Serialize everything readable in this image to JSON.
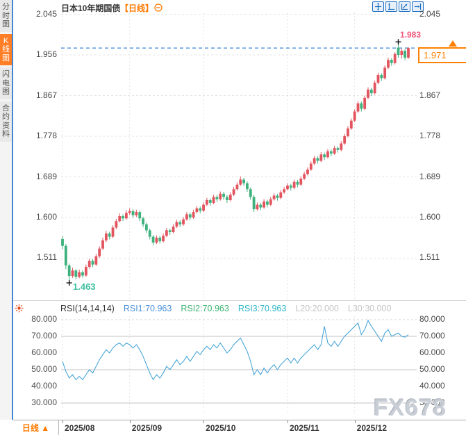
{
  "sidebar": {
    "tabs": [
      {
        "label": "分时图",
        "active": false
      },
      {
        "label": "K线图",
        "active": true
      },
      {
        "label": "闪电图",
        "active": false
      },
      {
        "label": "合约资料",
        "active": false
      }
    ]
  },
  "header": {
    "title": "日本10年期国债",
    "timeframe_tag": "【日线】",
    "toolbar_icons": [
      "pan-tool",
      "fit-y-axis",
      "fit-chart",
      "jump-to-latest"
    ]
  },
  "price_pane": {
    "axis_ticks": [
      "2.045",
      "1.956",
      "1.867",
      "1.778",
      "1.689",
      "1.600",
      "1.511"
    ],
    "high_label": "1.983",
    "low_label": "1.463",
    "last_price_label": "1.971"
  },
  "rsi_pane": {
    "header": {
      "name": "RSI(14,14,14)",
      "rsi1": "RSI1:70.963",
      "rsi2": "RSI2:70.963",
      "rsi3": "RSI3:70.963",
      "l20": "L20:20.000",
      "l30": "L30:30.000"
    },
    "axis_ticks": [
      "80.000",
      "70.000",
      "60.000",
      "50.000",
      "40.000",
      "30.000"
    ]
  },
  "bottom_bar": {
    "timeframe": "日线",
    "dropdown_arrow": "▲"
  },
  "watermark": "FX678",
  "colors": {
    "up": "#e2545e",
    "down": "#3eb17c",
    "rsi_line": "#4aa6d8",
    "rsi1_label": "#4a90d9",
    "rsi2_label": "#3cb371",
    "rsi3_label": "#2ab5c8",
    "l_label": "#c4c4c4",
    "accent_orange": "#ff7a00",
    "last_price_line": "#3a86d8",
    "high_label": "#f0557a",
    "low_label": "#3fc0a0",
    "toolbar_blue": "#1d6ec0",
    "grid": "#e4e4e4"
  },
  "chart_data": {
    "type": "candlestick+line",
    "title": "日本10年期国债 日线 (Japan 10Y Government Bond, daily)",
    "price_axis": [
      2.045,
      1.956,
      1.867,
      1.778,
      1.689,
      1.6,
      1.511
    ],
    "rsi_axis": [
      80,
      70,
      60,
      50,
      40,
      30
    ],
    "rsi_solid_lines": [
      70,
      50,
      30
    ],
    "rsi_dashed_lines": [
      80
    ],
    "last_price": 1.971,
    "high": 1.983,
    "high_index": 100,
    "low": 1.463,
    "low_index": 2,
    "months": [
      {
        "label": "2025/08",
        "index": 0
      },
      {
        "label": "2025/09",
        "index": 20
      },
      {
        "label": "2025/10",
        "index": 42
      },
      {
        "label": "2025/11",
        "index": 67
      },
      {
        "label": "2025/12",
        "index": 87
      }
    ],
    "candles": [
      [
        1.553,
        1.559,
        1.531,
        1.538
      ],
      [
        1.538,
        1.542,
        1.487,
        1.495
      ],
      [
        1.495,
        1.499,
        1.463,
        1.472
      ],
      [
        1.472,
        1.49,
        1.468,
        1.484
      ],
      [
        1.484,
        1.487,
        1.465,
        1.47
      ],
      [
        1.47,
        1.486,
        1.467,
        1.48
      ],
      [
        1.48,
        1.484,
        1.468,
        1.473
      ],
      [
        1.473,
        1.497,
        1.47,
        1.492
      ],
      [
        1.492,
        1.51,
        1.488,
        1.505
      ],
      [
        1.505,
        1.509,
        1.491,
        1.497
      ],
      [
        1.497,
        1.52,
        1.494,
        1.515
      ],
      [
        1.515,
        1.537,
        1.512,
        1.532
      ],
      [
        1.532,
        1.556,
        1.529,
        1.55
      ],
      [
        1.55,
        1.571,
        1.546,
        1.565
      ],
      [
        1.565,
        1.569,
        1.552,
        1.558
      ],
      [
        1.558,
        1.583,
        1.555,
        1.578
      ],
      [
        1.578,
        1.597,
        1.574,
        1.592
      ],
      [
        1.592,
        1.609,
        1.589,
        1.603
      ],
      [
        1.603,
        1.607,
        1.592,
        1.598
      ],
      [
        1.598,
        1.616,
        1.595,
        1.61
      ],
      [
        1.61,
        1.62,
        1.606,
        1.614
      ],
      [
        1.614,
        1.618,
        1.599,
        1.605
      ],
      [
        1.605,
        1.617,
        1.601,
        1.612
      ],
      [
        1.612,
        1.615,
        1.592,
        1.598
      ],
      [
        1.598,
        1.602,
        1.579,
        1.585
      ],
      [
        1.585,
        1.589,
        1.566,
        1.572
      ],
      [
        1.572,
        1.576,
        1.552,
        1.558
      ],
      [
        1.558,
        1.562,
        1.539,
        1.545
      ],
      [
        1.545,
        1.561,
        1.542,
        1.556
      ],
      [
        1.556,
        1.56,
        1.543,
        1.548
      ],
      [
        1.548,
        1.565,
        1.545,
        1.56
      ],
      [
        1.56,
        1.577,
        1.557,
        1.572
      ],
      [
        1.572,
        1.576,
        1.562,
        1.568
      ],
      [
        1.568,
        1.585,
        1.565,
        1.58
      ],
      [
        1.58,
        1.595,
        1.577,
        1.59
      ],
      [
        1.59,
        1.594,
        1.579,
        1.585
      ],
      [
        1.585,
        1.601,
        1.582,
        1.596
      ],
      [
        1.596,
        1.612,
        1.593,
        1.607
      ],
      [
        1.607,
        1.611,
        1.594,
        1.6
      ],
      [
        1.6,
        1.617,
        1.597,
        1.612
      ],
      [
        1.612,
        1.625,
        1.609,
        1.62
      ],
      [
        1.62,
        1.624,
        1.609,
        1.615
      ],
      [
        1.615,
        1.633,
        1.612,
        1.628
      ],
      [
        1.628,
        1.643,
        1.625,
        1.638
      ],
      [
        1.638,
        1.642,
        1.626,
        1.632
      ],
      [
        1.632,
        1.65,
        1.629,
        1.645
      ],
      [
        1.645,
        1.649,
        1.634,
        1.64
      ],
      [
        1.64,
        1.657,
        1.637,
        1.652
      ],
      [
        1.652,
        1.656,
        1.639,
        1.645
      ],
      [
        1.645,
        1.649,
        1.632,
        1.638
      ],
      [
        1.638,
        1.655,
        1.635,
        1.65
      ],
      [
        1.65,
        1.667,
        1.647,
        1.662
      ],
      [
        1.662,
        1.677,
        1.659,
        1.672
      ],
      [
        1.672,
        1.69,
        1.669,
        1.683
      ],
      [
        1.683,
        1.687,
        1.669,
        1.675
      ],
      [
        1.675,
        1.679,
        1.656,
        1.662
      ],
      [
        1.662,
        1.666,
        1.639,
        1.645
      ],
      [
        1.645,
        1.649,
        1.612,
        1.618
      ],
      [
        1.618,
        1.633,
        1.615,
        1.628
      ],
      [
        1.628,
        1.632,
        1.616,
        1.622
      ],
      [
        1.622,
        1.64,
        1.619,
        1.635
      ],
      [
        1.635,
        1.639,
        1.622,
        1.628
      ],
      [
        1.628,
        1.645,
        1.625,
        1.64
      ],
      [
        1.64,
        1.653,
        1.637,
        1.648
      ],
      [
        1.648,
        1.652,
        1.637,
        1.643
      ],
      [
        1.643,
        1.66,
        1.64,
        1.655
      ],
      [
        1.655,
        1.667,
        1.652,
        1.662
      ],
      [
        1.662,
        1.675,
        1.659,
        1.67
      ],
      [
        1.67,
        1.674,
        1.659,
        1.665
      ],
      [
        1.665,
        1.683,
        1.662,
        1.678
      ],
      [
        1.678,
        1.682,
        1.666,
        1.672
      ],
      [
        1.672,
        1.69,
        1.669,
        1.685
      ],
      [
        1.685,
        1.7,
        1.682,
        1.695
      ],
      [
        1.695,
        1.71,
        1.692,
        1.705
      ],
      [
        1.705,
        1.723,
        1.702,
        1.718
      ],
      [
        1.718,
        1.735,
        1.715,
        1.73
      ],
      [
        1.73,
        1.734,
        1.718,
        1.724
      ],
      [
        1.724,
        1.743,
        1.721,
        1.738
      ],
      [
        1.738,
        1.742,
        1.726,
        1.732
      ],
      [
        1.732,
        1.75,
        1.729,
        1.745
      ],
      [
        1.745,
        1.749,
        1.734,
        1.74
      ],
      [
        1.74,
        1.757,
        1.737,
        1.752
      ],
      [
        1.752,
        1.756,
        1.742,
        1.748
      ],
      [
        1.748,
        1.767,
        1.745,
        1.762
      ],
      [
        1.762,
        1.783,
        1.759,
        1.778
      ],
      [
        1.778,
        1.8,
        1.775,
        1.795
      ],
      [
        1.795,
        1.817,
        1.792,
        1.812
      ],
      [
        1.812,
        1.837,
        1.809,
        1.832
      ],
      [
        1.832,
        1.855,
        1.829,
        1.85
      ],
      [
        1.85,
        1.854,
        1.832,
        1.838
      ],
      [
        1.838,
        1.867,
        1.835,
        1.862
      ],
      [
        1.862,
        1.885,
        1.859,
        1.88
      ],
      [
        1.88,
        1.884,
        1.866,
        1.872
      ],
      [
        1.872,
        1.9,
        1.869,
        1.895
      ],
      [
        1.895,
        1.917,
        1.892,
        1.912
      ],
      [
        1.912,
        1.916,
        1.899,
        1.905
      ],
      [
        1.905,
        1.933,
        1.902,
        1.928
      ],
      [
        1.928,
        1.95,
        1.925,
        1.945
      ],
      [
        1.945,
        1.949,
        1.932,
        1.938
      ],
      [
        1.938,
        1.962,
        1.935,
        1.958
      ],
      [
        1.972,
        1.983,
        1.95,
        1.956
      ],
      [
        1.956,
        1.97,
        1.948,
        1.965
      ],
      [
        1.965,
        1.969,
        1.944,
        1.95
      ],
      [
        1.95,
        1.973,
        1.947,
        1.971
      ]
    ],
    "rsi": [
      55,
      49,
      45,
      47,
      44,
      46,
      44,
      47,
      50,
      48,
      52,
      56,
      59,
      62,
      60,
      63,
      65,
      66,
      64,
      66,
      65,
      63,
      65,
      62,
      58,
      53,
      48,
      44,
      47,
      45,
      48,
      52,
      50,
      53,
      56,
      53,
      55,
      58,
      55,
      58,
      61,
      59,
      62,
      64,
      62,
      65,
      63,
      66,
      63,
      60,
      62,
      65,
      67,
      69,
      65,
      61,
      55,
      47,
      50,
      47,
      51,
      48,
      51,
      53,
      50,
      53,
      55,
      57,
      54,
      57,
      54,
      57,
      59,
      61,
      63,
      65,
      62,
      65,
      76,
      66,
      64,
      67,
      64,
      67,
      70,
      72,
      74,
      76,
      78,
      71,
      74,
      79.5,
      76,
      73,
      70,
      67,
      72,
      74,
      70,
      71,
      72,
      70,
      69.5,
      70.963
    ]
  }
}
